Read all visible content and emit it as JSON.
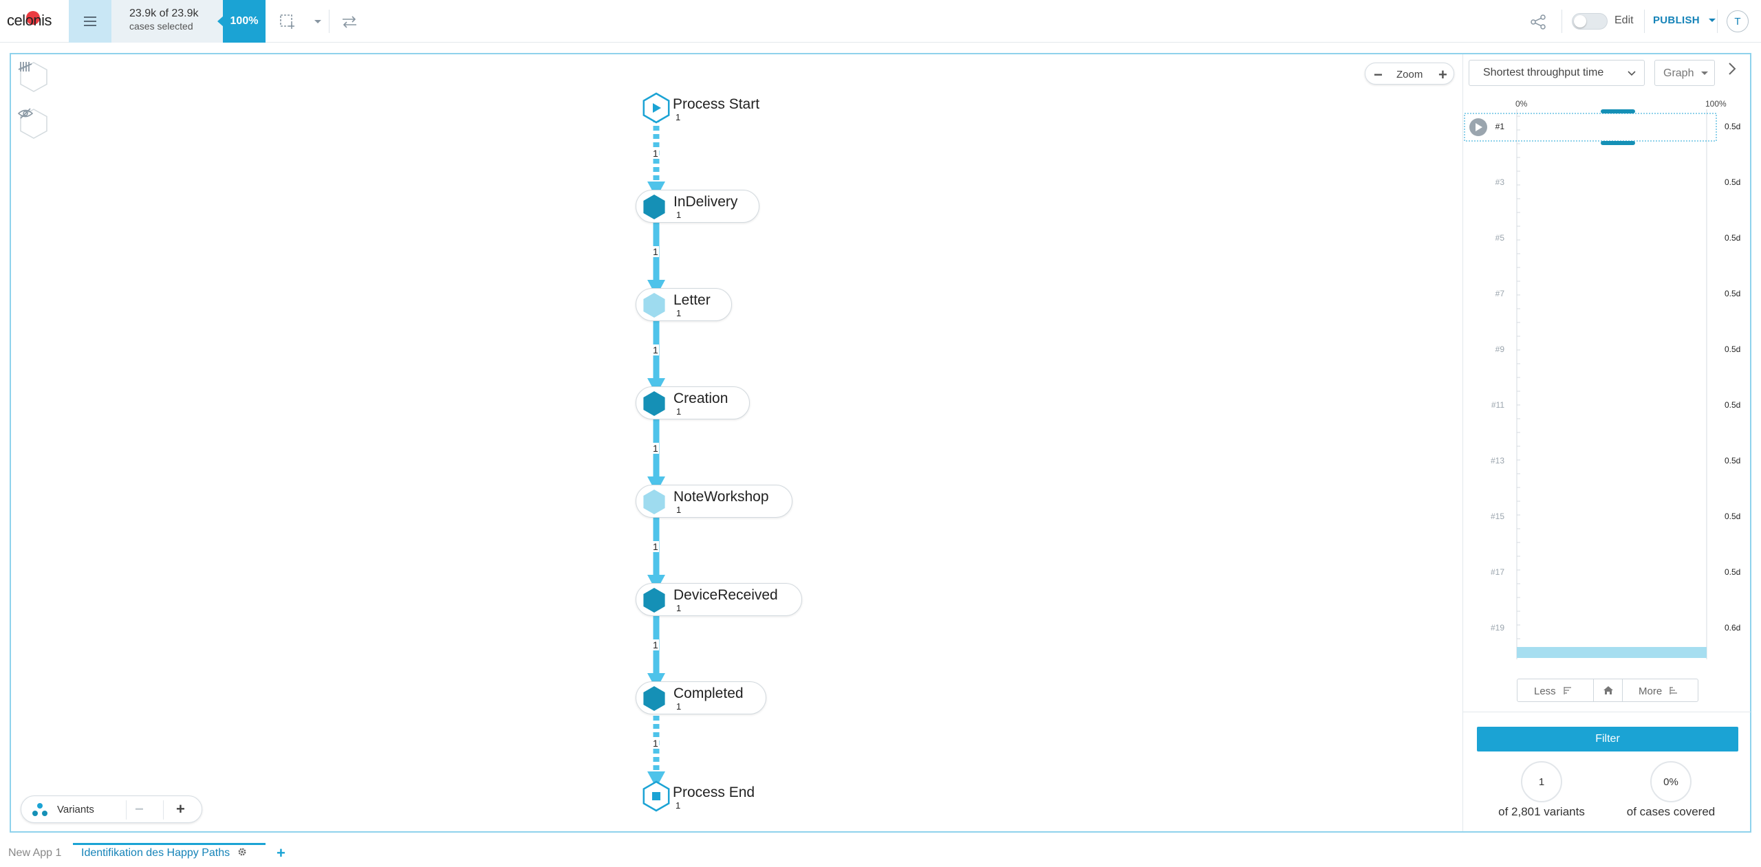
{
  "topbar": {
    "logo": "celonis",
    "cases_main": "23.9k of 23.9k",
    "cases_sub": "cases selected",
    "percent": "100%",
    "edit_label": "Edit",
    "publish_label": "PUBLISH",
    "avatar_initial": "T"
  },
  "canvas": {
    "zoom_label": "Zoom",
    "variants_label": "Variants",
    "nodes": [
      {
        "label": "Process Start",
        "count": "1",
        "type": "start"
      },
      {
        "label": "InDelivery",
        "count": "1",
        "type": "activity",
        "shade": "dark"
      },
      {
        "label": "Letter",
        "count": "1",
        "type": "activity",
        "shade": "light"
      },
      {
        "label": "Creation",
        "count": "1",
        "type": "activity",
        "shade": "dark"
      },
      {
        "label": "NoteWorkshop",
        "count": "1",
        "type": "activity",
        "shade": "light"
      },
      {
        "label": "DeviceReceived",
        "count": "1",
        "type": "activity",
        "shade": "dark"
      },
      {
        "label": "Completed",
        "count": "1",
        "type": "activity",
        "shade": "dark"
      },
      {
        "label": "Process End",
        "count": "1",
        "type": "end"
      }
    ],
    "edges": [
      "1",
      "1",
      "1",
      "1",
      "1",
      "1",
      "1"
    ],
    "colors": {
      "dark": "#1590b6",
      "light": "#9edbef",
      "edge": "#4ec3ea",
      "outline": "#1ba3d4"
    }
  },
  "panel": {
    "sort_select": "Shortest throughput time",
    "view_button": "Graph",
    "axis_min": "0%",
    "axis_max": "100%",
    "rows": [
      {
        "id": "#1",
        "value": "0.5d",
        "selected": true
      },
      {
        "id": "#3",
        "value": "0.5d"
      },
      {
        "id": "#5",
        "value": "0.5d"
      },
      {
        "id": "#7",
        "value": "0.5d"
      },
      {
        "id": "#9",
        "value": "0.5d"
      },
      {
        "id": "#11",
        "value": "0.5d"
      },
      {
        "id": "#13",
        "value": "0.5d"
      },
      {
        "id": "#15",
        "value": "0.5d"
      },
      {
        "id": "#17",
        "value": "0.5d"
      },
      {
        "id": "#19",
        "value": "0.6d"
      }
    ],
    "less_label": "Less",
    "more_label": "More",
    "filter_label": "Filter",
    "variants_count": "1",
    "variants_caption": "of 2,801 variants",
    "coverage_pct": "0%",
    "coverage_caption": "of cases covered"
  },
  "tabs": {
    "items": [
      {
        "label": "New App 1",
        "active": false
      },
      {
        "label": "Identifikation des Happy Paths",
        "active": true
      }
    ]
  }
}
